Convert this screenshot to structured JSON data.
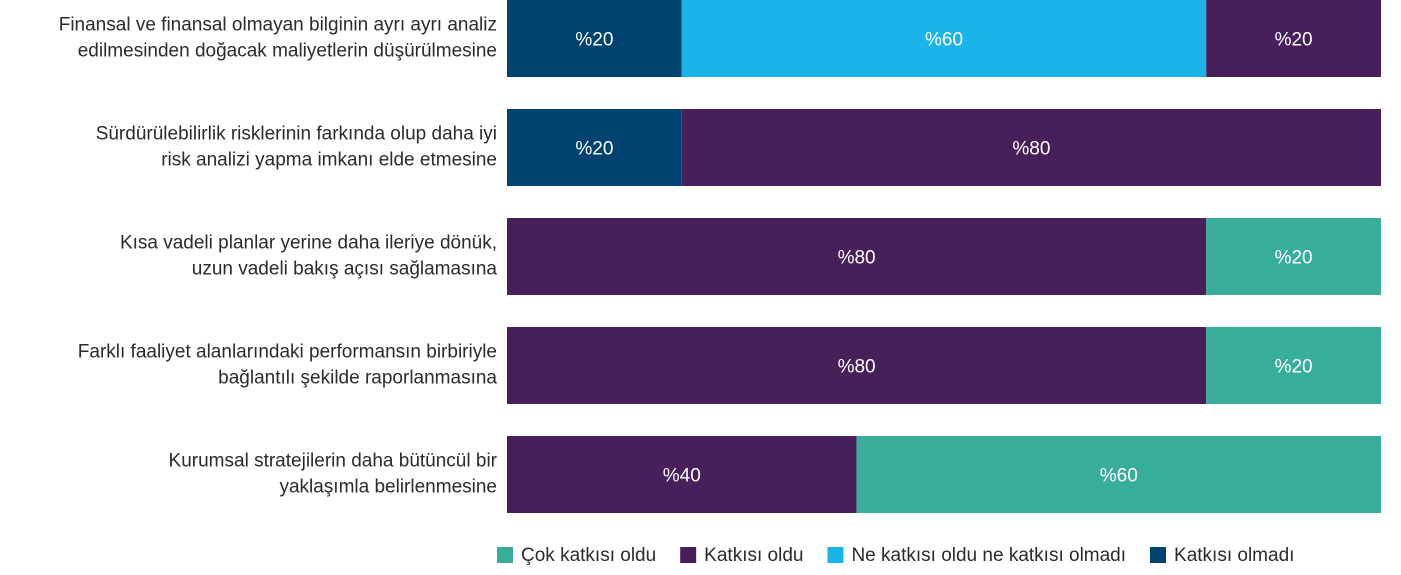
{
  "chart_data": {
    "type": "stacked_bar_horizontal",
    "categories": [
      "Finansal ve finansal olmayan bilginin ayrı ayrı analiz\nedilmesinden doğacak maliyetlerin düşürülmesine",
      "Sürdürülebilirlik risklerinin farkında olup daha iyi\nrisk analizi yapma imkanı elde etmesine",
      "Kısa vadeli planlar yerine daha ileriye dönük,\nuzun vadeli bakış açısı sağlamasına",
      "Farklı faaliyet alanlarındaki performansın birbiriyle\nbağlantılı şekilde raporlanmasına",
      "Kurumsal stratejilerin daha bütüncül bir\nyaklaşımla belirlenmesine"
    ],
    "series": [
      {
        "name": "Çok katkısı oldu",
        "color": "#38ae9a",
        "values": [
          0,
          0,
          20,
          20,
          60
        ],
        "value_labels": [
          null,
          null,
          "%20",
          "%20",
          "%60"
        ]
      },
      {
        "name": "Katkısı oldu",
        "color": "#47205b",
        "values": [
          20,
          80,
          80,
          80,
          40
        ],
        "value_labels": [
          "%20",
          "%80",
          "%80",
          "%80",
          "%40"
        ]
      },
      {
        "name": "Ne katkısı oldu ne katkısı olmadı",
        "color": "#1ab4e8",
        "values": [
          60,
          0,
          0,
          0,
          0
        ],
        "value_labels": [
          "%60",
          null,
          null,
          null,
          null
        ]
      },
      {
        "name": "Katkısı olmadı",
        "color": "#004270",
        "values": [
          20,
          20,
          0,
          0,
          0
        ],
        "value_labels": [
          "%20",
          "%20",
          null,
          null,
          null
        ]
      }
    ],
    "legend": "bottom-right"
  }
}
